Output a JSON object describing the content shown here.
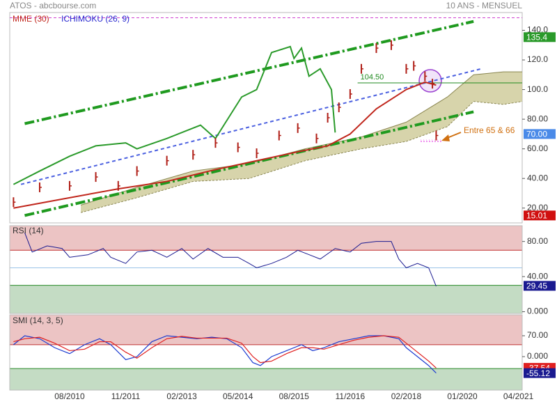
{
  "chart_data": [
    {
      "type": "stock",
      "title": "ATOS - abcbourse.com",
      "subtitle": "10 ANS - MENSUEL",
      "xlim": [
        -16,
        121
      ],
      "xticks": [
        {
          "value": 0,
          "label": "08/2010"
        },
        {
          "value": 15,
          "label": "11/2011"
        },
        {
          "value": 30,
          "label": "02/2013"
        },
        {
          "value": 45,
          "label": "05/2014"
        },
        {
          "value": 60,
          "label": "08/2015"
        },
        {
          "value": 75,
          "label": "11/2016"
        },
        {
          "value": 90,
          "label": "02/2018"
        },
        {
          "value": 105,
          "label": "01/2020"
        },
        {
          "value": 120,
          "label": "04/2021"
        }
      ],
      "ylim": [
        10,
        152
      ],
      "yticks": [
        {
          "value": 20,
          "label": "20.00"
        },
        {
          "value": 40,
          "label": "40.00"
        },
        {
          "value": 60,
          "label": "60.00"
        },
        {
          "value": 80,
          "label": "80.00"
        },
        {
          "value": 100,
          "label": "100.0"
        },
        {
          "value": 120,
          "label": "120.0"
        },
        {
          "value": 140,
          "label": "140.0"
        }
      ],
      "price": {
        "color": "#b01e16",
        "x": [
          -15,
          -8,
          0,
          7,
          13,
          18,
          26,
          33,
          39,
          45,
          50,
          56,
          61,
          66,
          69,
          72,
          75,
          78,
          82,
          86,
          90,
          92,
          95,
          97,
          98
        ],
        "values": [
          24,
          34,
          35,
          41,
          35,
          45,
          52,
          56,
          64,
          61,
          57,
          69,
          74,
          67,
          81,
          88,
          97,
          114,
          128,
          130,
          114,
          116,
          109,
          104,
          69
        ]
      },
      "series": [
        {
          "name": "MME (30)",
          "color": "#c0261c",
          "label_color": "#c0261c",
          "x": [
            -15,
            0,
            13,
            26,
            39,
            50,
            61,
            69,
            75,
            82,
            90,
            95,
            98
          ],
          "values": [
            20,
            27,
            33,
            38,
            46,
            52,
            58,
            62,
            70,
            87,
            100,
            105,
            103
          ]
        },
        {
          "name": "ICHIMOKU (26, 9)",
          "color": "#2a9a2a",
          "label_color": "#2a2ad0",
          "x": [
            -15,
            -8,
            0,
            7,
            15,
            18,
            26,
            35,
            39,
            43,
            46,
            50,
            54,
            59,
            60,
            62,
            64,
            67,
            70,
            71
          ],
          "values": [
            36,
            45,
            55,
            62,
            64,
            60,
            67,
            76,
            67,
            83,
            95,
            100,
            125,
            129,
            121,
            128,
            109,
            114,
            100,
            71
          ]
        }
      ],
      "cloud": {
        "color": "#c9c58f",
        "x": [
          3,
          18,
          33,
          48,
          63,
          78,
          90,
          101,
          108,
          116,
          121
        ],
        "upper": [
          22,
          34,
          45,
          50,
          60,
          68,
          78,
          95,
          110,
          112,
          112
        ],
        "lower": [
          17,
          27,
          38,
          40,
          52,
          60,
          65,
          75,
          92,
          90,
          92
        ]
      },
      "channels": [
        {
          "color": "#1f9a1f",
          "style": "dashdot",
          "x": [
            -12,
            108
          ],
          "values": [
            77,
            146
          ]
        },
        {
          "color": "#1f9a1f",
          "style": "dashdot",
          "x": [
            -12,
            108
          ],
          "values": [
            15,
            85
          ]
        },
        {
          "color": "#4a5fe0",
          "style": "dash",
          "x": [
            -13,
            110
          ],
          "values": [
            36,
            114
          ]
        }
      ],
      "level": {
        "value": 104.5,
        "label": "104.50",
        "from": 77,
        "color": "#1f8a1f"
      },
      "top_line": 148.5,
      "target": [
        65,
        66
      ],
      "annotation": "Entre 65 & 66",
      "tags": [
        {
          "value": 135.4,
          "color": "#2a9a2a"
        },
        {
          "value": 70,
          "label": "70.00",
          "color": "#4a8ae8"
        },
        {
          "value": 15.01,
          "color": "#d01010"
        }
      ]
    },
    {
      "type": "rsi",
      "title": "RSI (14)",
      "color": "#1a1a90",
      "ylim": [
        -2,
        98
      ],
      "yticks": [
        {
          "value": 0,
          "label": "0.000"
        },
        {
          "value": 40,
          "label": "40.00"
        },
        {
          "value": 80,
          "label": "80.00"
        }
      ],
      "overbought": 70,
      "oversold": 30,
      "mid": 50,
      "x": [
        -12,
        -10,
        -6,
        -2,
        0,
        5,
        9,
        11,
        15,
        18,
        22,
        26,
        30,
        33,
        37,
        41,
        45,
        48,
        50,
        54,
        58,
        61,
        64,
        67,
        71,
        75,
        78,
        82,
        86,
        88,
        90,
        93,
        96,
        98
      ],
      "values": [
        90,
        68,
        75,
        72,
        62,
        65,
        72,
        62,
        55,
        68,
        70,
        62,
        72,
        60,
        72,
        62,
        62,
        55,
        50,
        55,
        62,
        70,
        65,
        60,
        72,
        68,
        78,
        80,
        80,
        60,
        50,
        55,
        50,
        29
      ],
      "tags": [
        {
          "value": 29.45,
          "color": "#1a1a90"
        }
      ]
    },
    {
      "type": "smi",
      "title": "SMI (14, 3, 5)",
      "ylim": [
        -112,
        140
      ],
      "yticks": [
        {
          "value": 0,
          "label": "0.000"
        },
        {
          "value": 70,
          "label": "70.00"
        }
      ],
      "overbought": 40,
      "oversold": -40,
      "x": [
        -15,
        -12,
        -8,
        -4,
        0,
        4,
        8,
        11,
        15,
        18,
        22,
        26,
        30,
        34,
        38,
        42,
        46,
        49,
        51,
        54,
        58,
        62,
        65,
        68,
        72,
        76,
        80,
        84,
        88,
        90,
        93,
        96,
        98
      ],
      "series": [
        {
          "color": "#1a3ad0",
          "values": [
            40,
            70,
            60,
            30,
            10,
            40,
            60,
            40,
            -10,
            0,
            50,
            70,
            65,
            60,
            65,
            60,
            30,
            -20,
            -30,
            0,
            20,
            40,
            20,
            30,
            50,
            60,
            70,
            70,
            60,
            30,
            0,
            -30,
            -55
          ]
        },
        {
          "color": "#e02020",
          "values": [
            50,
            60,
            65,
            45,
            20,
            25,
            50,
            50,
            15,
            -5,
            30,
            60,
            68,
            62,
            62,
            62,
            45,
            0,
            -20,
            -15,
            10,
            30,
            30,
            25,
            40,
            55,
            65,
            70,
            65,
            45,
            15,
            -15,
            -38
          ]
        }
      ],
      "tags": [
        {
          "value": -37.54,
          "color": "#e02020"
        },
        {
          "value": -55.12,
          "color": "#1a1a90"
        }
      ]
    }
  ]
}
